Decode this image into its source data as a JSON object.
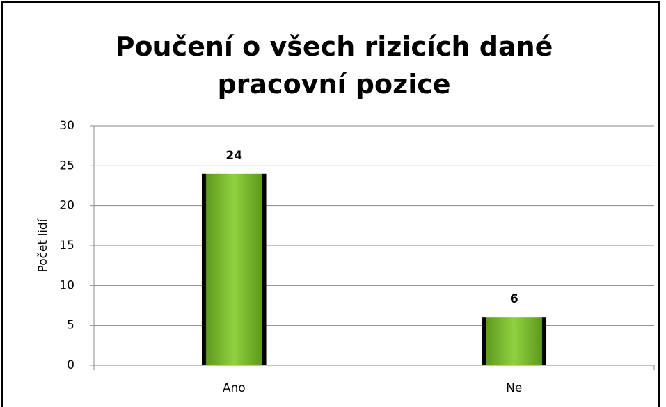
{
  "chart_data": {
    "type": "bar",
    "title": "Poučení o všech rizicích dané pracovní pozice",
    "ylabel": "Počet lidí",
    "categories": [
      "Ano",
      "Ne"
    ],
    "values": [
      24,
      6
    ],
    "color": "#76b82a",
    "ylim": [
      0,
      30
    ],
    "yticks": [
      0,
      5,
      10,
      15,
      20,
      25,
      30
    ],
    "grid": true
  }
}
